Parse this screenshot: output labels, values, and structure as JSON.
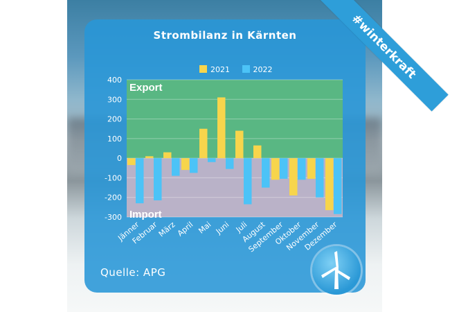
{
  "banner": {
    "hashtag": "#winterkraft"
  },
  "source": {
    "text": "Quelle: APG"
  },
  "chart_data": {
    "type": "bar",
    "title": "Strombilanz in Kärnten",
    "categories": [
      "Jänner",
      "Februar",
      "März",
      "April",
      "Mai",
      "Juni",
      "Juli",
      "August",
      "September",
      "Oktober",
      "November",
      "Dezember"
    ],
    "series": [
      {
        "name": "2021",
        "color": "#f7d54c",
        "values": [
          -35,
          10,
          30,
          -60,
          150,
          310,
          140,
          65,
          -110,
          -190,
          -105,
          -265
        ]
      },
      {
        "name": "2022",
        "color": "#4cc3f7",
        "values": [
          -230,
          -215,
          -90,
          -75,
          -20,
          -55,
          -235,
          -150,
          -105,
          -110,
          -200,
          -285
        ]
      }
    ],
    "ylim": [
      -300,
      400
    ],
    "yticks": [
      400,
      300,
      200,
      100,
      0,
      -100,
      -200,
      -300
    ],
    "regions": {
      "export_label": "Export",
      "import_label": "Import",
      "export_color": "#5cb87e",
      "import_color": "#c1b3c7"
    },
    "legend_position": "top-center",
    "grid": true
  }
}
